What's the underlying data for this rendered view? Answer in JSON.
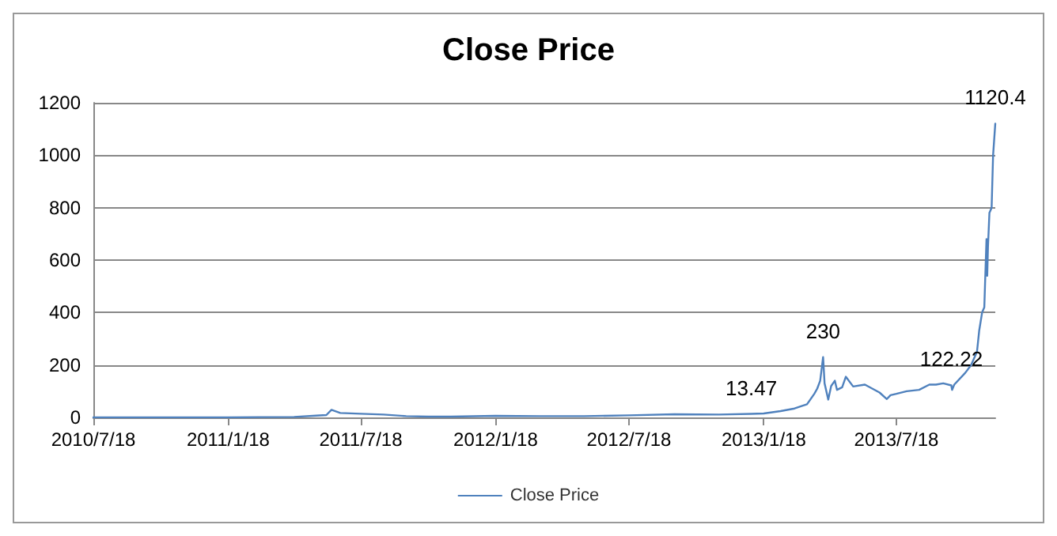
{
  "chart_data": {
    "type": "line",
    "title": "Close Price",
    "x": [
      "2010-07-18",
      "2010-10-18",
      "2011-01-18",
      "2011-03-01",
      "2011-04-18",
      "2011-05-18",
      "2011-06-01",
      "2011-06-08",
      "2011-06-20",
      "2011-07-18",
      "2011-08-18",
      "2011-09-18",
      "2011-10-18",
      "2011-11-18",
      "2012-01-18",
      "2012-03-18",
      "2012-05-18",
      "2012-07-18",
      "2012-09-18",
      "2012-11-18",
      "2013-01-01",
      "2013-01-18",
      "2013-02-10",
      "2013-03-01",
      "2013-03-18",
      "2013-03-28",
      "2013-04-01",
      "2013-04-05",
      "2013-04-09",
      "2013-04-11",
      "2013-04-16",
      "2013-04-20",
      "2013-04-25",
      "2013-04-28",
      "2013-05-05",
      "2013-05-10",
      "2013-05-20",
      "2013-06-05",
      "2013-06-15",
      "2013-06-25",
      "2013-07-05",
      "2013-07-10",
      "2013-07-18",
      "2013-08-01",
      "2013-08-18",
      "2013-09-01",
      "2013-09-10",
      "2013-09-20",
      "2013-10-01",
      "2013-10-02",
      "2013-10-05",
      "2013-10-20",
      "2013-10-28",
      "2013-11-05",
      "2013-11-08",
      "2013-11-12",
      "2013-11-15",
      "2013-11-18",
      "2013-11-19",
      "2013-11-20",
      "2013-11-22",
      "2013-11-25",
      "2013-11-27",
      "2013-11-30"
    ],
    "series": [
      {
        "name": "Close Price",
        "color": "#4f81bd",
        "values": [
          0,
          0,
          0,
          1,
          2,
          7,
          9,
          29,
          17,
          14,
          11,
          5,
          3,
          3,
          6,
          5,
          5,
          8,
          12,
          11,
          13.47,
          15,
          24,
          34,
          50,
          90,
          110,
          140,
          230,
          130,
          68,
          120,
          140,
          105,
          115,
          155,
          118,
          125,
          110,
          95,
          70,
          85,
          90,
          100,
          105,
          125,
          125,
          130,
          122.22,
          105,
          125,
          170,
          200,
          250,
          330,
          400,
          420,
          680,
          540,
          650,
          780,
          800,
          1000,
          1120.4
        ],
        "value_labels": [
          null,
          null,
          null,
          null,
          null,
          null,
          null,
          null,
          null,
          null,
          null,
          null,
          null,
          null,
          null,
          null,
          null,
          null,
          null,
          null,
          "13.47",
          null,
          null,
          null,
          null,
          null,
          null,
          null,
          "230",
          null,
          null,
          null,
          null,
          null,
          null,
          null,
          null,
          null,
          null,
          null,
          null,
          null,
          null,
          null,
          null,
          null,
          null,
          null,
          "122.22",
          null,
          null,
          null,
          null,
          null,
          null,
          null,
          null,
          null,
          null,
          null,
          null,
          null,
          null,
          "1120.4"
        ]
      }
    ],
    "xlim": [
      "2010-07-18",
      "2013-11-30"
    ],
    "xticks": [
      {
        "value": "2010-07-18",
        "label": "2010/7/18"
      },
      {
        "value": "2011-01-18",
        "label": "2011/1/18"
      },
      {
        "value": "2011-07-18",
        "label": "2011/7/18"
      },
      {
        "value": "2012-01-18",
        "label": "2012/1/18"
      },
      {
        "value": "2012-07-18",
        "label": "2012/7/18"
      },
      {
        "value": "2013-01-18",
        "label": "2013/1/18"
      },
      {
        "value": "2013-07-18",
        "label": "2013/7/18"
      }
    ],
    "ylim": [
      0,
      1200
    ],
    "yticks": [
      0,
      200,
      400,
      600,
      800,
      1000,
      1200
    ],
    "grid": "y",
    "legend": "bottom",
    "marker": "none",
    "line_style": "solid"
  }
}
